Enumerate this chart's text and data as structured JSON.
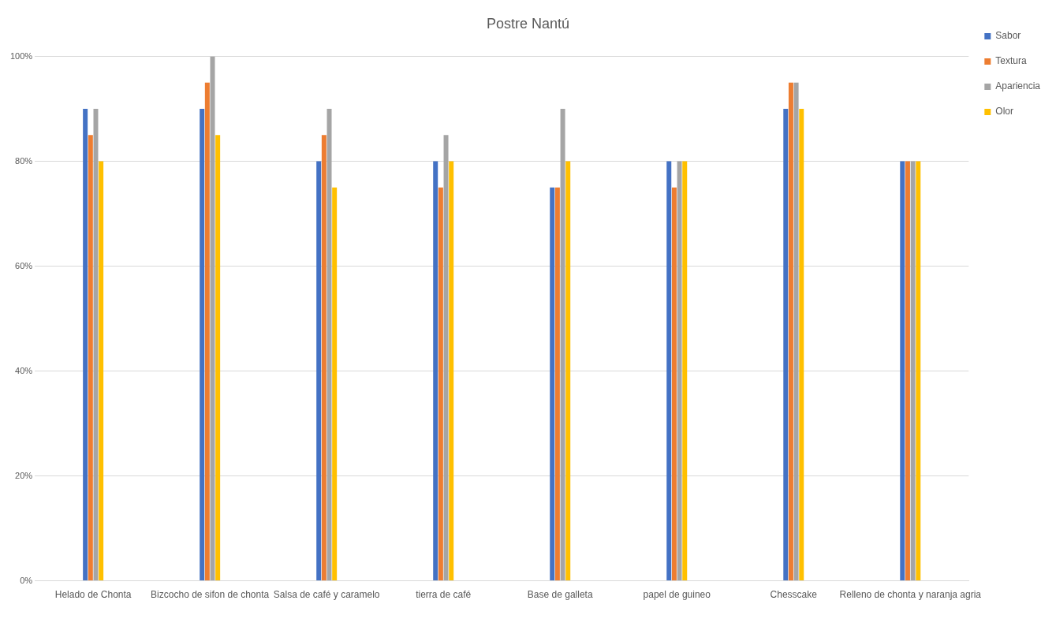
{
  "chart_data": {
    "type": "bar",
    "title": "Postre Nantú",
    "categories": [
      "Helado de Chonta",
      "Bizcocho de sifon de chonta",
      "Salsa de café y caramelo",
      "tierra de café",
      "Base de galleta",
      "papel de guineo",
      "Chesscake",
      "Relleno de chonta y naranja agria"
    ],
    "series": [
      {
        "name": "Sabor",
        "color": "#4472c4",
        "values": [
          90,
          90,
          80,
          80,
          75,
          80,
          90,
          80
        ]
      },
      {
        "name": "Textura",
        "color": "#ed7d31",
        "values": [
          85,
          95,
          85,
          75,
          75,
          75,
          95,
          80
        ]
      },
      {
        "name": "Apariencia",
        "color": "#a5a5a5",
        "values": [
          90,
          100,
          90,
          85,
          90,
          80,
          95,
          80
        ]
      },
      {
        "name": "Olor",
        "color": "#ffc000",
        "values": [
          80,
          85,
          75,
          80,
          80,
          80,
          90,
          80
        ]
      }
    ],
    "ylim": [
      0,
      100
    ],
    "yticks": [
      {
        "value": 0,
        "label": "0%"
      },
      {
        "value": 20,
        "label": "20%"
      },
      {
        "value": 40,
        "label": "40%"
      },
      {
        "value": 60,
        "label": "60%"
      },
      {
        "value": 80,
        "label": "80%"
      },
      {
        "value": 100,
        "label": "100%"
      }
    ],
    "grid": "y",
    "legend": "right"
  }
}
